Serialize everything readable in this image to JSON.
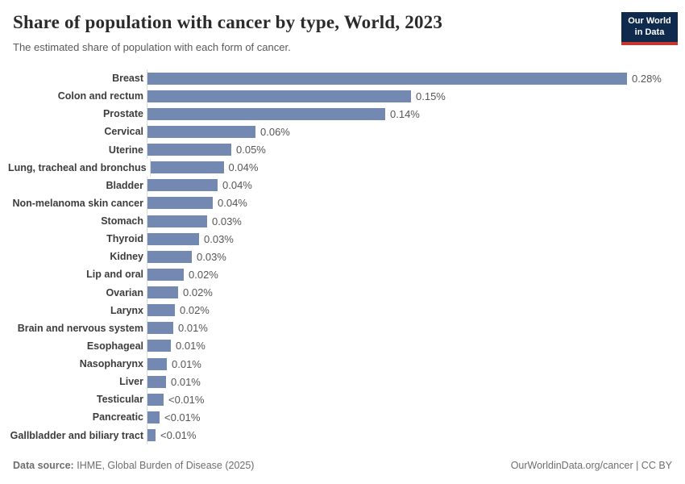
{
  "header": {
    "title": "Share of population with cancer by type, World, 2023",
    "subtitle": "The estimated share of population with each form of cancer.",
    "logo": {
      "line1": "Our World",
      "line2": "in Data",
      "bg_color": "#102a4d",
      "accent_color": "#c7352f"
    }
  },
  "chart_data": {
    "type": "bar",
    "orientation": "horizontal",
    "title": "Share of population with cancer by type, World, 2023",
    "xlabel": "",
    "ylabel": "",
    "unit": "%",
    "grid": false,
    "xlim_pct": [
      0,
      0.28
    ],
    "bar_color": "#7389b2",
    "axis_line_color": "#dcdcdc",
    "value_label_position": "end-of-bar",
    "categories": [
      "Breast",
      "Colon and rectum",
      "Prostate",
      "Cervical",
      "Uterine",
      "Lung, tracheal and bronchus",
      "Bladder",
      "Non-melanoma skin cancer",
      "Stomach",
      "Thyroid",
      "Kidney",
      "Lip and oral",
      "Ovarian",
      "Larynx",
      "Brain and nervous system",
      "Esophageal",
      "Nasopharynx",
      "Liver",
      "Testicular",
      "Pancreatic",
      "Gallbladder and biliary tract"
    ],
    "values_pct": [
      0.28,
      0.154,
      0.139,
      0.063,
      0.049,
      0.043,
      0.041,
      0.038,
      0.035,
      0.03,
      0.026,
      0.021,
      0.018,
      0.016,
      0.015,
      0.0136,
      0.0113,
      0.0108,
      0.0094,
      0.0071,
      0.0047
    ],
    "value_labels": [
      "0.28%",
      "0.15%",
      "0.14%",
      "0.06%",
      "0.05%",
      "0.04%",
      "0.04%",
      "0.04%",
      "0.03%",
      "0.03%",
      "0.03%",
      "0.02%",
      "0.02%",
      "0.02%",
      "0.01%",
      "0.01%",
      "0.01%",
      "0.01%",
      "<0.01%",
      "<0.01%",
      "<0.01%"
    ]
  },
  "footer": {
    "data_source_label": "Data source:",
    "data_source_value": "IHME, Global Burden of Disease (2025)",
    "right_text": "OurWorldinData.org/cancer | CC BY"
  }
}
